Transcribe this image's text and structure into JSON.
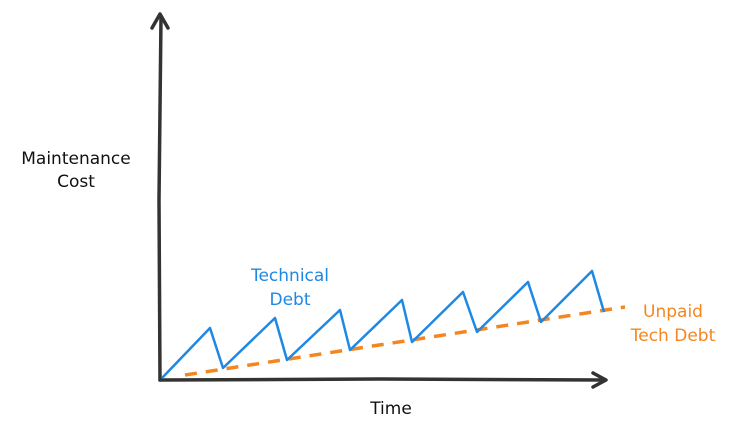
{
  "y_axis_label": [
    "Maintenance",
    "Cost"
  ],
  "x_axis_label": "Time",
  "technical_debt_label": [
    "Technical",
    "Debt"
  ],
  "unpaid_label": [
    "Unpaid",
    "Tech Debt"
  ]
}
